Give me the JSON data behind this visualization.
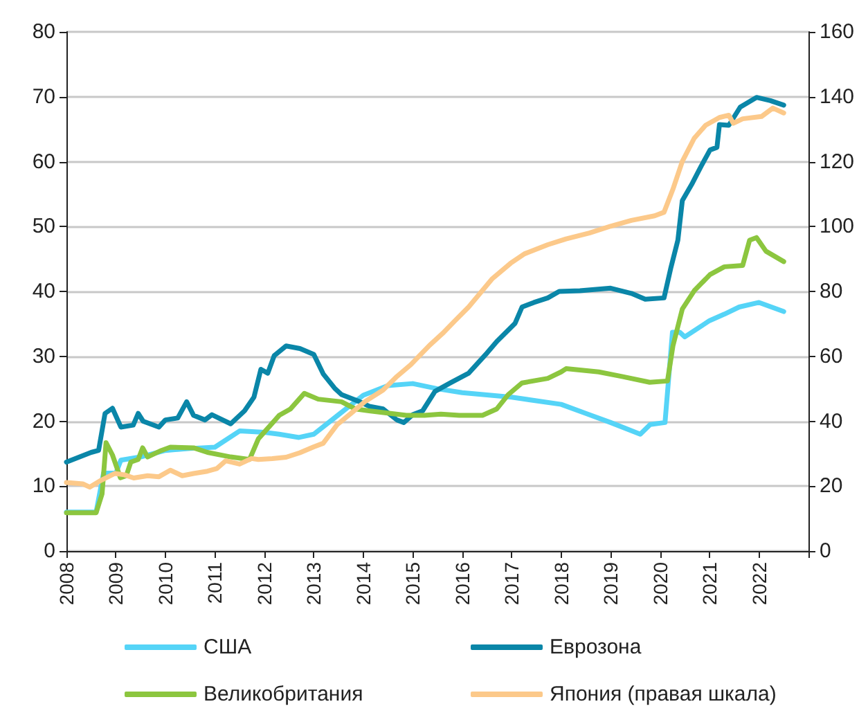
{
  "chart_data": {
    "type": "line",
    "xlim": [
      2008,
      2023
    ],
    "xticks": [
      2008,
      2009,
      2010,
      2011,
      2012,
      2013,
      2014,
      2015,
      2016,
      2017,
      2018,
      2019,
      2020,
      2021,
      2022,
      {
        "value": 2023,
        "label": null
      }
    ],
    "ylim": [
      0,
      80
    ],
    "yticks": [
      0,
      10,
      20,
      30,
      40,
      50,
      60,
      70,
      80
    ],
    "y2lim": [
      0,
      160
    ],
    "y2ticks": [
      0,
      20,
      40,
      60,
      80,
      100,
      120,
      140,
      160
    ],
    "grid": "y",
    "legend": "bottom",
    "marker": "none",
    "line_style": "solid",
    "series": [
      {
        "name": "США",
        "color": "#55d4f7",
        "x": [
          2008,
          2008.6,
          2008.75,
          2009,
          2009.1,
          2009.5,
          2010,
          2010.5,
          2011,
          2011.5,
          2012,
          2012.3,
          2012.7,
          2013,
          2013.5,
          2014,
          2014.5,
          2015,
          2015.5,
          2016,
          2017,
          2018,
          2018.5,
          2019,
          2019.6,
          2019.8,
          2020.1,
          2020.25,
          2020.4,
          2020.5,
          2021,
          2021.3,
          2021.6,
          2022,
          2022.5
        ],
        "values": [
          6,
          6,
          12,
          12,
          14,
          14.5,
          15.5,
          15.8,
          16,
          18.5,
          18.3,
          18,
          17.5,
          18,
          21,
          24,
          25.5,
          25.8,
          25,
          24.4,
          23.7,
          22.6,
          21.2,
          19.8,
          18,
          19.5,
          19.8,
          33.7,
          33.7,
          33,
          35.5,
          36.5,
          37.6,
          38.3,
          36.9
        ]
      },
      {
        "name": "Еврозона",
        "color": "#0a86a8",
        "x": [
          2008,
          2008.5,
          2008.65,
          2008.78,
          2008.93,
          2009.1,
          2009.35,
          2009.45,
          2009.55,
          2009.87,
          2010,
          2010.25,
          2010.43,
          2010.57,
          2010.8,
          2010.94,
          2011.32,
          2011.6,
          2011.79,
          2011.93,
          2012.07,
          2012.2,
          2012.44,
          2012.72,
          2013,
          2013.19,
          2013.42,
          2013.56,
          2013.93,
          2014.12,
          2014.4,
          2014.68,
          2014.82,
          2015,
          2015.2,
          2015.45,
          2015.76,
          2016.13,
          2016.5,
          2016.7,
          2017.07,
          2017.21,
          2017.45,
          2017.73,
          2017.96,
          2018.38,
          2019,
          2019.42,
          2019.7,
          2020.08,
          2020.22,
          2020.36,
          2020.45,
          2020.64,
          2020.83,
          2021.01,
          2021.15,
          2021.2,
          2021.39,
          2021.62,
          2021.95,
          2022.23,
          2022.5
        ],
        "values": [
          13.7,
          15.2,
          15.5,
          21.2,
          22,
          19.1,
          19.4,
          21.2,
          20,
          19.1,
          20.2,
          20.5,
          23,
          20.9,
          20.2,
          21,
          19.6,
          21.6,
          23.7,
          28,
          27.4,
          30.1,
          31.6,
          31.2,
          30.3,
          27.3,
          25.1,
          24.1,
          23,
          22.3,
          21.9,
          20.2,
          19.8,
          21,
          21.6,
          24.6,
          25.9,
          27.4,
          30.5,
          32.3,
          35.1,
          37.6,
          38.3,
          39,
          40,
          40.1,
          40.5,
          39.7,
          38.8,
          39,
          43.7,
          47.9,
          54,
          56.5,
          59.3,
          61.8,
          62.2,
          65.7,
          65.6,
          68.4,
          69.9,
          69.4,
          68.7
        ]
      },
      {
        "name": "Великобритания",
        "color": "#8cc63f",
        "x": [
          2008,
          2008.6,
          2008.72,
          2008.8,
          2008.93,
          2009.09,
          2009.21,
          2009.3,
          2009.45,
          2009.54,
          2009.64,
          2009.92,
          2010.1,
          2010.57,
          2010.85,
          2011.32,
          2011.7,
          2011.88,
          2012.3,
          2012.53,
          2012.81,
          2013.09,
          2013.56,
          2013.84,
          2014.12,
          2014.87,
          2015.24,
          2015.57,
          2015.94,
          2016.41,
          2016.7,
          2016.93,
          2017.21,
          2017.73,
          2018,
          2018.1,
          2018.76,
          2019.23,
          2019.79,
          2020.15,
          2020.26,
          2020.45,
          2020.69,
          2021.01,
          2021.3,
          2021.67,
          2021.81,
          2021.95,
          2022.14,
          2022.5
        ],
        "values": [
          5.9,
          5.9,
          8.8,
          16.7,
          14.8,
          11.3,
          11.6,
          13.7,
          14.1,
          15.9,
          14.5,
          15.5,
          16,
          15.9,
          15.2,
          14.5,
          14.1,
          17.3,
          20.9,
          21.9,
          24.3,
          23.4,
          23,
          21.9,
          21.6,
          20.9,
          20.9,
          21.1,
          20.9,
          20.9,
          21.9,
          24.1,
          25.9,
          26.6,
          27.6,
          28.1,
          27.6,
          26.9,
          26,
          26.2,
          31.6,
          37.3,
          40.1,
          42.6,
          43.8,
          44,
          47.9,
          48.3,
          46.2,
          44.6
        ]
      },
      {
        "name": "Япония (правая шкала)",
        "color": "#fcc98a",
        "axis": "y2",
        "x": [
          2008,
          2008.33,
          2008.47,
          2008.7,
          2008.98,
          2009.17,
          2009.36,
          2009.64,
          2009.87,
          2010.1,
          2010.34,
          2010.57,
          2010.85,
          2011.04,
          2011.22,
          2011.5,
          2011.74,
          2011.88,
          2012.16,
          2012.44,
          2012.72,
          2013,
          2013.19,
          2013.47,
          2013.75,
          2014.03,
          2014.4,
          2014.68,
          2014.96,
          2015.34,
          2015.6,
          2015.85,
          2016.13,
          2016.6,
          2016.98,
          2017.26,
          2017.73,
          2018.1,
          2018.57,
          2019,
          2019.42,
          2019.89,
          2020.08,
          2020.26,
          2020.45,
          2020.69,
          2020.92,
          2021.2,
          2021.39,
          2021.48,
          2021.67,
          2022.05,
          2022.28,
          2022.5
        ],
        "values": [
          21.1,
          20.7,
          19.7,
          21.8,
          23.9,
          23.5,
          22.5,
          23.2,
          22.9,
          24.9,
          23.2,
          23.9,
          24.6,
          25.4,
          27.8,
          26.8,
          28.5,
          28.2,
          28.5,
          28.9,
          30.3,
          32.1,
          33.2,
          38.9,
          42.4,
          46,
          49.6,
          53.8,
          57.4,
          63.4,
          67,
          70.9,
          75.2,
          83.8,
          88.7,
          91.6,
          94.4,
          96.2,
          98,
          100.1,
          101.9,
          103.3,
          104.4,
          111.5,
          120.1,
          127.2,
          131.2,
          133.6,
          134.3,
          131.8,
          133.2,
          133.9,
          136.5,
          135
        ]
      }
    ]
  }
}
